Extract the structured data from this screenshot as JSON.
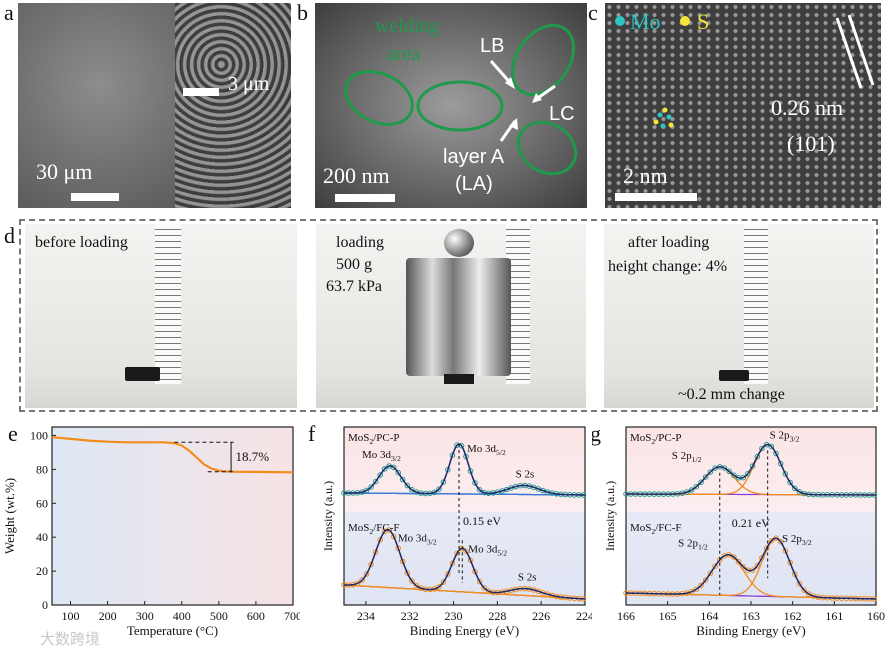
{
  "panel_a": {
    "letter": "a",
    "scale_main": "30 μm",
    "scale_inset": "3 μm"
  },
  "panel_b": {
    "letter": "b",
    "welding_line1": "welding",
    "welding_line2": "area",
    "lb": "LB",
    "lc": "LC",
    "layer_line1": "layer A",
    "layer_line2": "(LA)",
    "scale": "200 nm"
  },
  "panel_c": {
    "letter": "c",
    "mo": "Mo",
    "s": "S",
    "spacing": "0.26 nm",
    "plane": "(101)",
    "scale": "2 nm"
  },
  "panel_d": {
    "letter": "d",
    "before": "before loading",
    "loading": "loading",
    "mass": "500 g",
    "pressure": "63.7 kPa",
    "after": "after loading",
    "height_change": "height change: 4%",
    "mm_change": "~0.2 mm change"
  },
  "watermark": "大数跨境",
  "colors": {
    "orange": "#f28c1c",
    "teal": "#2a9d8f",
    "purple": "#8a3fd1",
    "navy": "#1d2a6b",
    "green": "#1e9a4a"
  },
  "chart_data": [
    {
      "type": "line",
      "panel": "e",
      "xlabel": "Temperature (°C)",
      "ylabel": "Weight (wt.%)",
      "xlim": [
        50,
        700
      ],
      "ylim": [
        0,
        105
      ],
      "xticks": [
        100,
        200,
        300,
        400,
        500,
        600,
        700
      ],
      "yticks": [
        0,
        20,
        40,
        60,
        80,
        100
      ],
      "annotation": "18.7%",
      "series": [
        {
          "name": "weight",
          "x": [
            50,
            100,
            150,
            200,
            250,
            300,
            350,
            380,
            400,
            420,
            440,
            460,
            480,
            500,
            520,
            550,
            600,
            650,
            700
          ],
          "y": [
            99,
            98,
            97,
            96.3,
            96,
            96,
            96,
            95.5,
            94,
            91,
            87,
            83,
            80.5,
            79.2,
            78.8,
            78.6,
            78.5,
            78.4,
            78.3
          ]
        }
      ]
    },
    {
      "type": "line",
      "panel": "f",
      "xlabel": "Binding Energy (eV)",
      "ylabel": "Intensity (a.u.)",
      "xlim": [
        235,
        224
      ],
      "xticks": [
        234,
        232,
        230,
        228,
        226,
        224
      ],
      "labels": {
        "top": "MoS2/PC-P",
        "bottom": "MoS2/FC-F",
        "mo32": "Mo 3d3/2",
        "mo52": "Mo 3d5/2",
        "s2s": "S 2s",
        "shift": "0.15 eV"
      },
      "series": [
        {
          "name": "MoS2/PC-P",
          "peaks": [
            {
              "c": 232.9,
              "h": 0.55,
              "w": 0.5
            },
            {
              "c": 229.75,
              "h": 1.0,
              "w": 0.42
            },
            {
              "c": 226.8,
              "h": 0.18,
              "w": 0.7
            }
          ]
        },
        {
          "name": "MoS2/FC-F",
          "peaks": [
            {
              "c": 233.0,
              "h": 1.0,
              "w": 0.55
            },
            {
              "c": 229.6,
              "h": 0.75,
              "w": 0.48
            },
            {
              "c": 226.7,
              "h": 0.12,
              "w": 0.7
            }
          ]
        }
      ]
    },
    {
      "type": "line",
      "panel": "g",
      "xlabel": "Binding Energy (eV)",
      "ylabel": "Intensity (a.u.)",
      "xlim": [
        166,
        160
      ],
      "xticks": [
        166,
        165,
        164,
        163,
        162,
        161,
        160
      ],
      "labels": {
        "top": "MoS2/PC-P",
        "bottom": "MoS2/FC-F",
        "s12": "S 2p1/2",
        "s32": "S 2p3/2",
        "shift": "0.21 eV"
      },
      "series": [
        {
          "name": "MoS2/PC-P",
          "peaks": [
            {
              "c": 163.75,
              "h": 0.55,
              "w": 0.35
            },
            {
              "c": 162.6,
              "h": 1.0,
              "w": 0.32
            }
          ]
        },
        {
          "name": "MoS2/FC-F",
          "peaks": [
            {
              "c": 163.55,
              "h": 0.7,
              "w": 0.38
            },
            {
              "c": 162.4,
              "h": 1.0,
              "w": 0.33
            }
          ]
        }
      ]
    }
  ]
}
